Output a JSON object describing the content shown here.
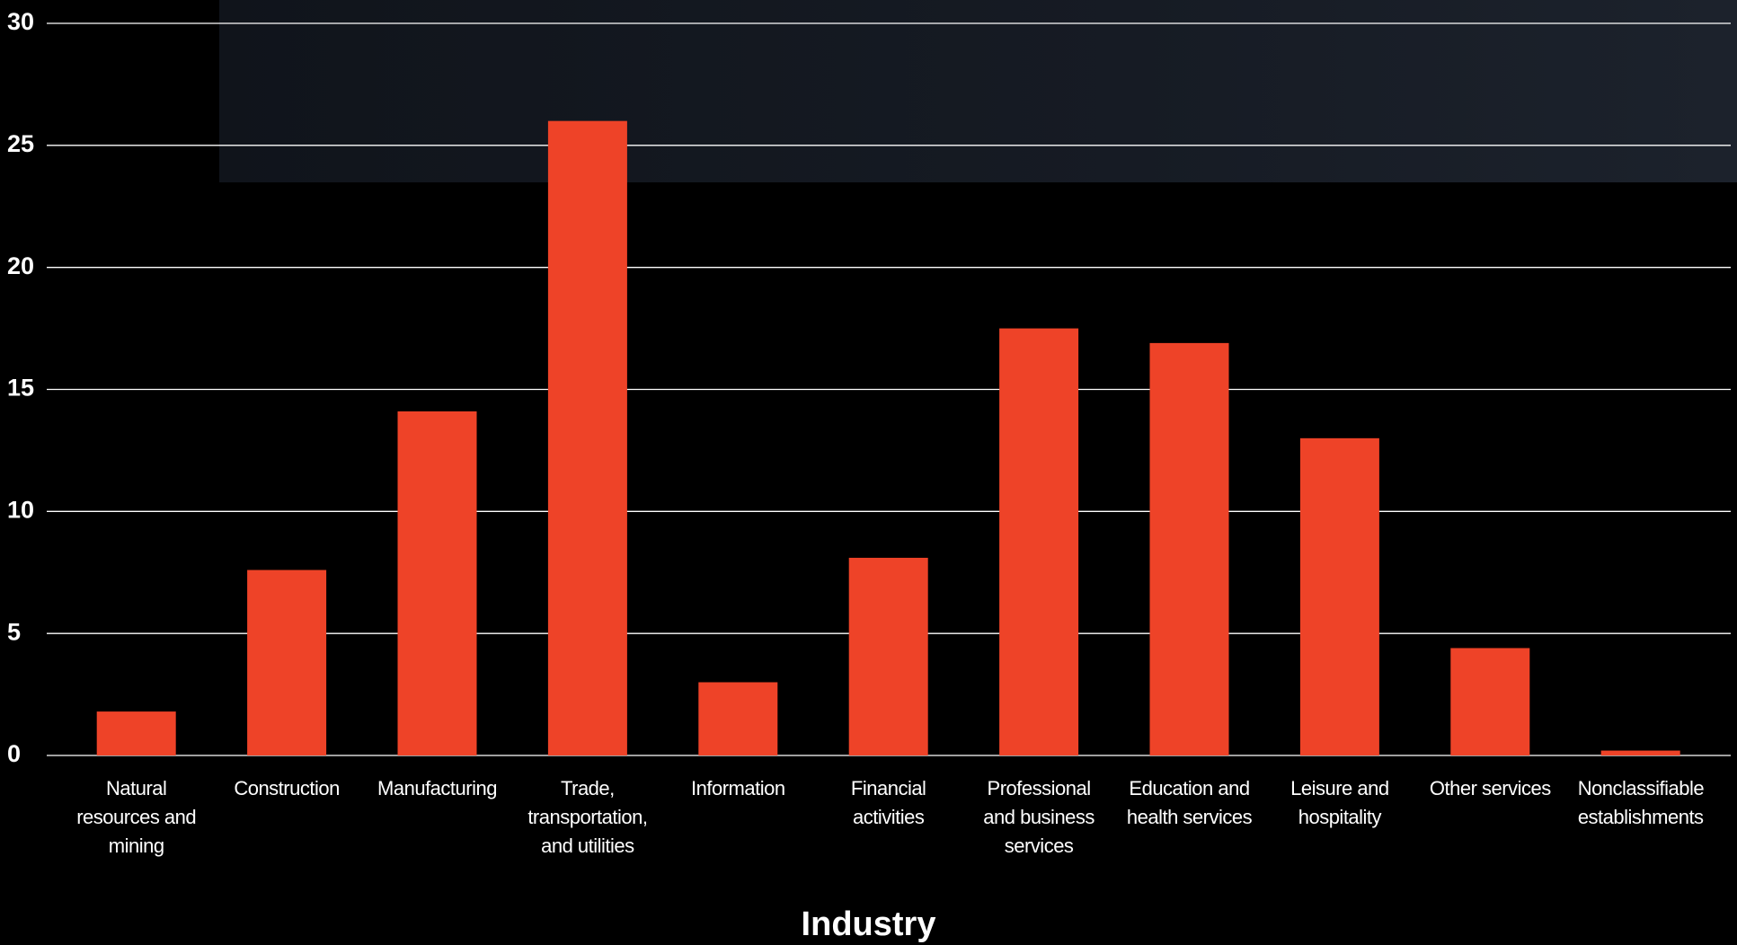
{
  "chart_data": {
    "type": "bar",
    "x_label": "Industry",
    "categories": [
      "Natural resources and mining",
      "Construction",
      "Manufacturing",
      "Trade, transportation, and utilities",
      "Information",
      "Financial activities",
      "Professional and business services",
      "Education and health services",
      "Leisure and hospitality",
      "Other services",
      "Nonclassifiable establishments"
    ],
    "values": [
      1.8,
      7.6,
      14.1,
      26.0,
      3.0,
      8.1,
      17.5,
      16.9,
      13.0,
      4.4,
      0.2
    ],
    "color": "#ee4328",
    "ylim": [
      0,
      30
    ],
    "yticks": [
      0,
      5,
      10,
      15,
      20,
      25,
      30
    ],
    "grid": true
  }
}
